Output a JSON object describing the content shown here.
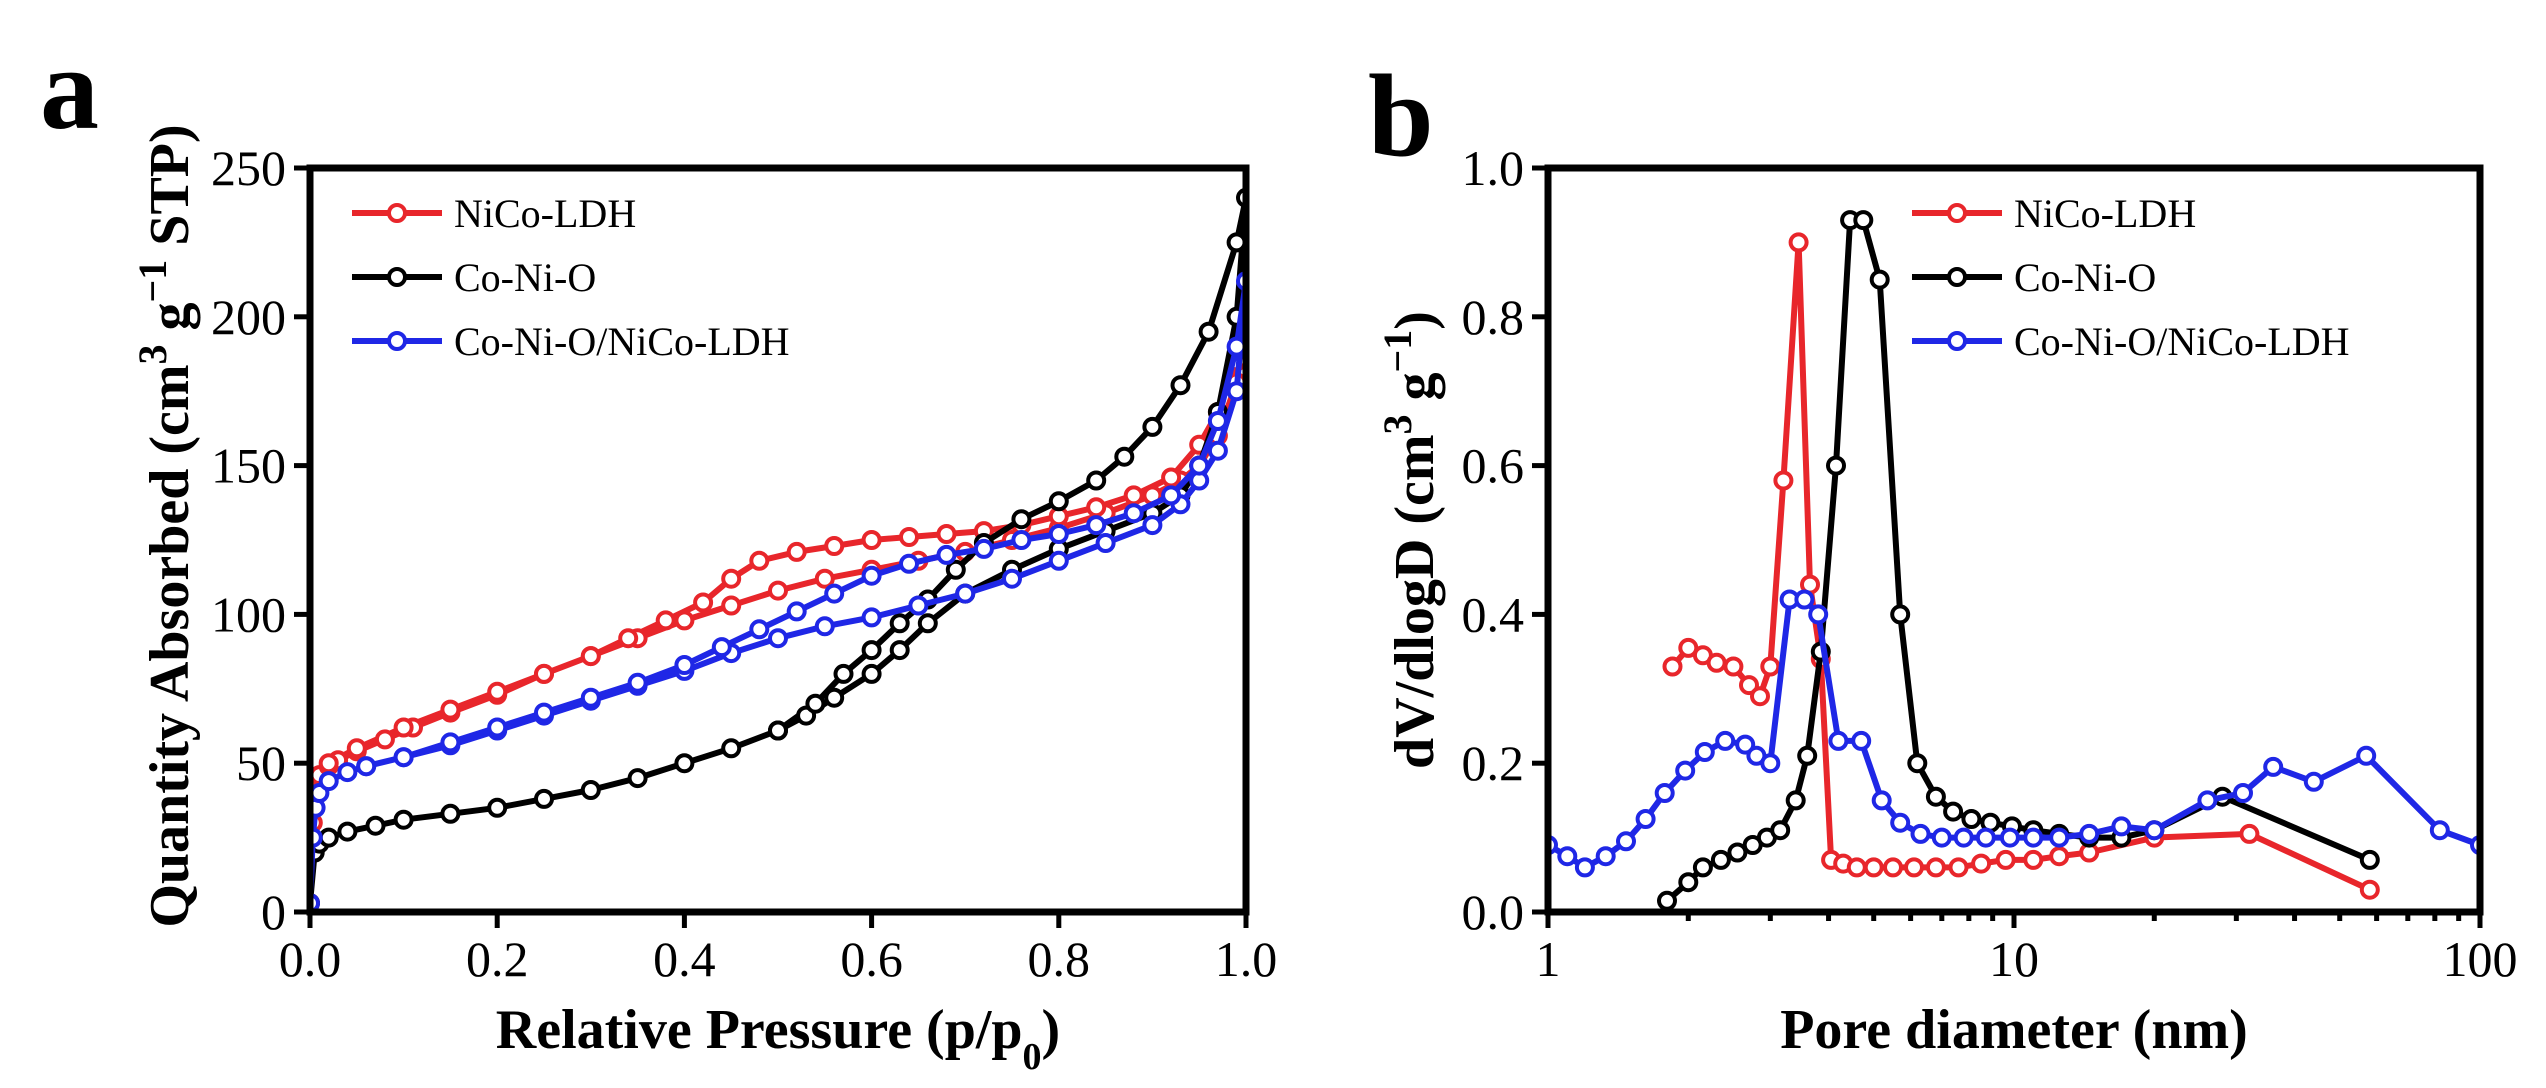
{
  "colors": {
    "NiCo-LDH": "#e8262b",
    "Co-Ni-O": "#000000",
    "Co-Ni-O/NiCo-LDH": "#1f27e6"
  },
  "chart_data": [
    {
      "panel": "a",
      "type": "line",
      "title": "",
      "xlabel": "Relative Pressure (p/p0)",
      "xlabel_main": "Relative Pressure (p/p",
      "xlabel_sub": "0",
      "xlabel_close": ")",
      "ylabel": "Quantity Absorbed (cm3 g−1 STP)",
      "ylabel_parts": {
        "main": "Quantity Absorbed (cm",
        "sup1": "3",
        "mid": " g",
        "sup2": "−1",
        "end": " STP)"
      },
      "xlim": [
        0,
        1
      ],
      "ylim": [
        0,
        250
      ],
      "xticks": [
        0,
        0.2,
        0.4,
        0.6,
        0.8,
        1.0
      ],
      "xtick_labels": [
        "0.0",
        "0.2",
        "0.4",
        "0.6",
        "0.8",
        "1.0"
      ],
      "yticks": [
        0,
        50,
        100,
        150,
        200,
        250
      ],
      "ytick_labels": [
        "0",
        "50",
        "100",
        "150",
        "200",
        "250"
      ],
      "legend_position": "top-left",
      "series": [
        {
          "name": "NiCo-LDH",
          "color_key": "NiCo-LDH",
          "x": [
            0.0,
            0.003,
            0.006,
            0.01,
            0.02,
            0.03,
            0.05,
            0.08,
            0.11,
            0.15,
            0.2,
            0.25,
            0.3,
            0.35,
            0.4,
            0.45,
            0.5,
            0.55,
            0.6,
            0.65,
            0.7,
            0.75,
            0.8,
            0.85,
            0.9,
            0.93,
            0.95,
            0.97,
            0.99,
            1.0,
            0.99,
            0.97,
            0.95,
            0.92,
            0.88,
            0.84,
            0.8,
            0.76,
            0.72,
            0.68,
            0.64,
            0.6,
            0.56,
            0.52,
            0.48,
            0.45,
            0.42,
            0.38,
            0.34,
            0.3,
            0.25,
            0.2,
            0.15,
            0.1,
            0.05,
            0.02
          ],
          "y": [
            3,
            30,
            40,
            46,
            49,
            51,
            54,
            58,
            62,
            67,
            73,
            80,
            86,
            92,
            98,
            103,
            108,
            112,
            115,
            118,
            121,
            125,
            129,
            134,
            140,
            145,
            150,
            160,
            178,
            205,
            185,
            168,
            157,
            146,
            140,
            136,
            133,
            130,
            128,
            127,
            126,
            125,
            123,
            121,
            118,
            112,
            104,
            98,
            92,
            86,
            80,
            74,
            68,
            62,
            55,
            50
          ]
        },
        {
          "name": "Co-Ni-O",
          "color_key": "Co-Ni-O",
          "x": [
            0.0,
            0.005,
            0.01,
            0.02,
            0.04,
            0.07,
            0.1,
            0.15,
            0.2,
            0.25,
            0.3,
            0.35,
            0.4,
            0.45,
            0.5,
            0.53,
            0.56,
            0.6,
            0.63,
            0.66,
            0.7,
            0.75,
            0.8,
            0.85,
            0.9,
            0.93,
            0.95,
            0.97,
            0.99,
            1.0,
            0.99,
            0.96,
            0.93,
            0.9,
            0.87,
            0.84,
            0.8,
            0.76,
            0.72,
            0.69,
            0.66,
            0.63,
            0.6,
            0.57,
            0.54,
            0.5
          ],
          "y": [
            3,
            20,
            23,
            25,
            27,
            29,
            31,
            33,
            35,
            38,
            41,
            45,
            50,
            55,
            61,
            66,
            72,
            80,
            88,
            97,
            107,
            115,
            122,
            128,
            134,
            140,
            150,
            168,
            200,
            240,
            225,
            195,
            177,
            163,
            153,
            145,
            138,
            132,
            124,
            115,
            105,
            97,
            88,
            80,
            70,
            61
          ]
        },
        {
          "name": "Co-Ni-O/NiCo-LDH",
          "color_key": "Co-Ni-O/NiCo-LDH",
          "x": [
            0.0,
            0.003,
            0.006,
            0.01,
            0.02,
            0.04,
            0.06,
            0.1,
            0.15,
            0.2,
            0.25,
            0.3,
            0.35,
            0.4,
            0.45,
            0.5,
            0.55,
            0.6,
            0.65,
            0.7,
            0.75,
            0.8,
            0.85,
            0.9,
            0.93,
            0.95,
            0.97,
            0.99,
            1.0,
            0.99,
            0.97,
            0.95,
            0.92,
            0.88,
            0.84,
            0.8,
            0.76,
            0.72,
            0.68,
            0.64,
            0.6,
            0.56,
            0.52,
            0.48,
            0.44,
            0.4,
            0.35,
            0.3,
            0.25,
            0.2,
            0.15,
            0.1,
            0.06
          ],
          "y": [
            3,
            25,
            35,
            40,
            44,
            47,
            49,
            52,
            56,
            61,
            66,
            71,
            76,
            81,
            87,
            92,
            96,
            99,
            103,
            107,
            112,
            118,
            124,
            130,
            137,
            145,
            155,
            175,
            212,
            190,
            165,
            150,
            140,
            134,
            130,
            127,
            125,
            122,
            120,
            117,
            113,
            107,
            101,
            95,
            89,
            83,
            77,
            72,
            67,
            62,
            57,
            52,
            49
          ]
        }
      ]
    },
    {
      "panel": "b",
      "type": "line",
      "title": "",
      "xlabel": "Pore diameter (nm)",
      "ylabel": "dV/dlogD (cm3 g−1)",
      "ylabel_parts": {
        "main": "dV/dlogD (cm",
        "sup1": "3",
        "mid": " g",
        "sup2": "−1",
        "end": ")"
      },
      "xscale": "log",
      "xlim": [
        1,
        100
      ],
      "ylim": [
        0.0,
        1.0
      ],
      "xticks": [
        1,
        10,
        100
      ],
      "xtick_labels": [
        "1",
        "10",
        "100"
      ],
      "yticks": [
        0.0,
        0.2,
        0.4,
        0.6,
        0.8,
        1.0
      ],
      "ytick_labels": [
        "0.0",
        "0.2",
        "0.4",
        "0.6",
        "0.8",
        "1.0"
      ],
      "legend_position": "top-right",
      "series": [
        {
          "name": "NiCo-LDH",
          "color_key": "NiCo-LDH",
          "x": [
            1.85,
            2.0,
            2.15,
            2.3,
            2.5,
            2.7,
            2.85,
            3.0,
            3.2,
            3.45,
            3.65,
            3.85,
            4.05,
            4.3,
            4.6,
            5.0,
            5.5,
            6.1,
            6.8,
            7.6,
            8.5,
            9.6,
            11.0,
            12.5,
            14.5,
            20,
            32,
            58
          ],
          "y": [
            0.33,
            0.355,
            0.345,
            0.335,
            0.33,
            0.305,
            0.29,
            0.33,
            0.58,
            0.9,
            0.44,
            0.34,
            0.07,
            0.065,
            0.06,
            0.06,
            0.06,
            0.06,
            0.06,
            0.06,
            0.065,
            0.07,
            0.07,
            0.075,
            0.08,
            0.1,
            0.105,
            0.03
          ]
        },
        {
          "name": "Co-Ni-O",
          "color_key": "Co-Ni-O",
          "x": [
            1.8,
            2.0,
            2.15,
            2.35,
            2.55,
            2.75,
            2.95,
            3.15,
            3.4,
            3.6,
            3.85,
            4.15,
            4.45,
            4.75,
            5.15,
            5.7,
            6.2,
            6.8,
            7.4,
            8.1,
            8.9,
            9.9,
            11.0,
            12.5,
            14.5,
            17,
            20,
            28,
            58
          ],
          "y": [
            0.015,
            0.04,
            0.06,
            0.07,
            0.08,
            0.09,
            0.1,
            0.11,
            0.15,
            0.21,
            0.35,
            0.6,
            0.93,
            0.93,
            0.85,
            0.4,
            0.2,
            0.155,
            0.135,
            0.125,
            0.12,
            0.115,
            0.11,
            0.105,
            0.1,
            0.1,
            0.11,
            0.155,
            0.07
          ]
        },
        {
          "name": "Co-Ni-O/NiCo-LDH",
          "color_key": "Co-Ni-O/NiCo-LDH",
          "x": [
            1.0,
            1.1,
            1.2,
            1.33,
            1.47,
            1.62,
            1.78,
            1.97,
            2.17,
            2.4,
            2.65,
            2.8,
            3.0,
            3.3,
            3.55,
            3.8,
            4.2,
            4.7,
            5.2,
            5.7,
            6.3,
            7.0,
            7.8,
            8.7,
            9.8,
            11.0,
            12.5,
            14.5,
            17,
            20,
            26,
            31,
            36,
            44,
            57,
            82,
            100
          ],
          "y": [
            0.09,
            0.075,
            0.06,
            0.075,
            0.095,
            0.125,
            0.16,
            0.19,
            0.215,
            0.23,
            0.225,
            0.21,
            0.2,
            0.42,
            0.42,
            0.4,
            0.23,
            0.23,
            0.15,
            0.12,
            0.105,
            0.1,
            0.1,
            0.1,
            0.1,
            0.1,
            0.1,
            0.105,
            0.115,
            0.11,
            0.15,
            0.16,
            0.195,
            0.175,
            0.21,
            0.11,
            0.09
          ]
        }
      ]
    }
  ]
}
